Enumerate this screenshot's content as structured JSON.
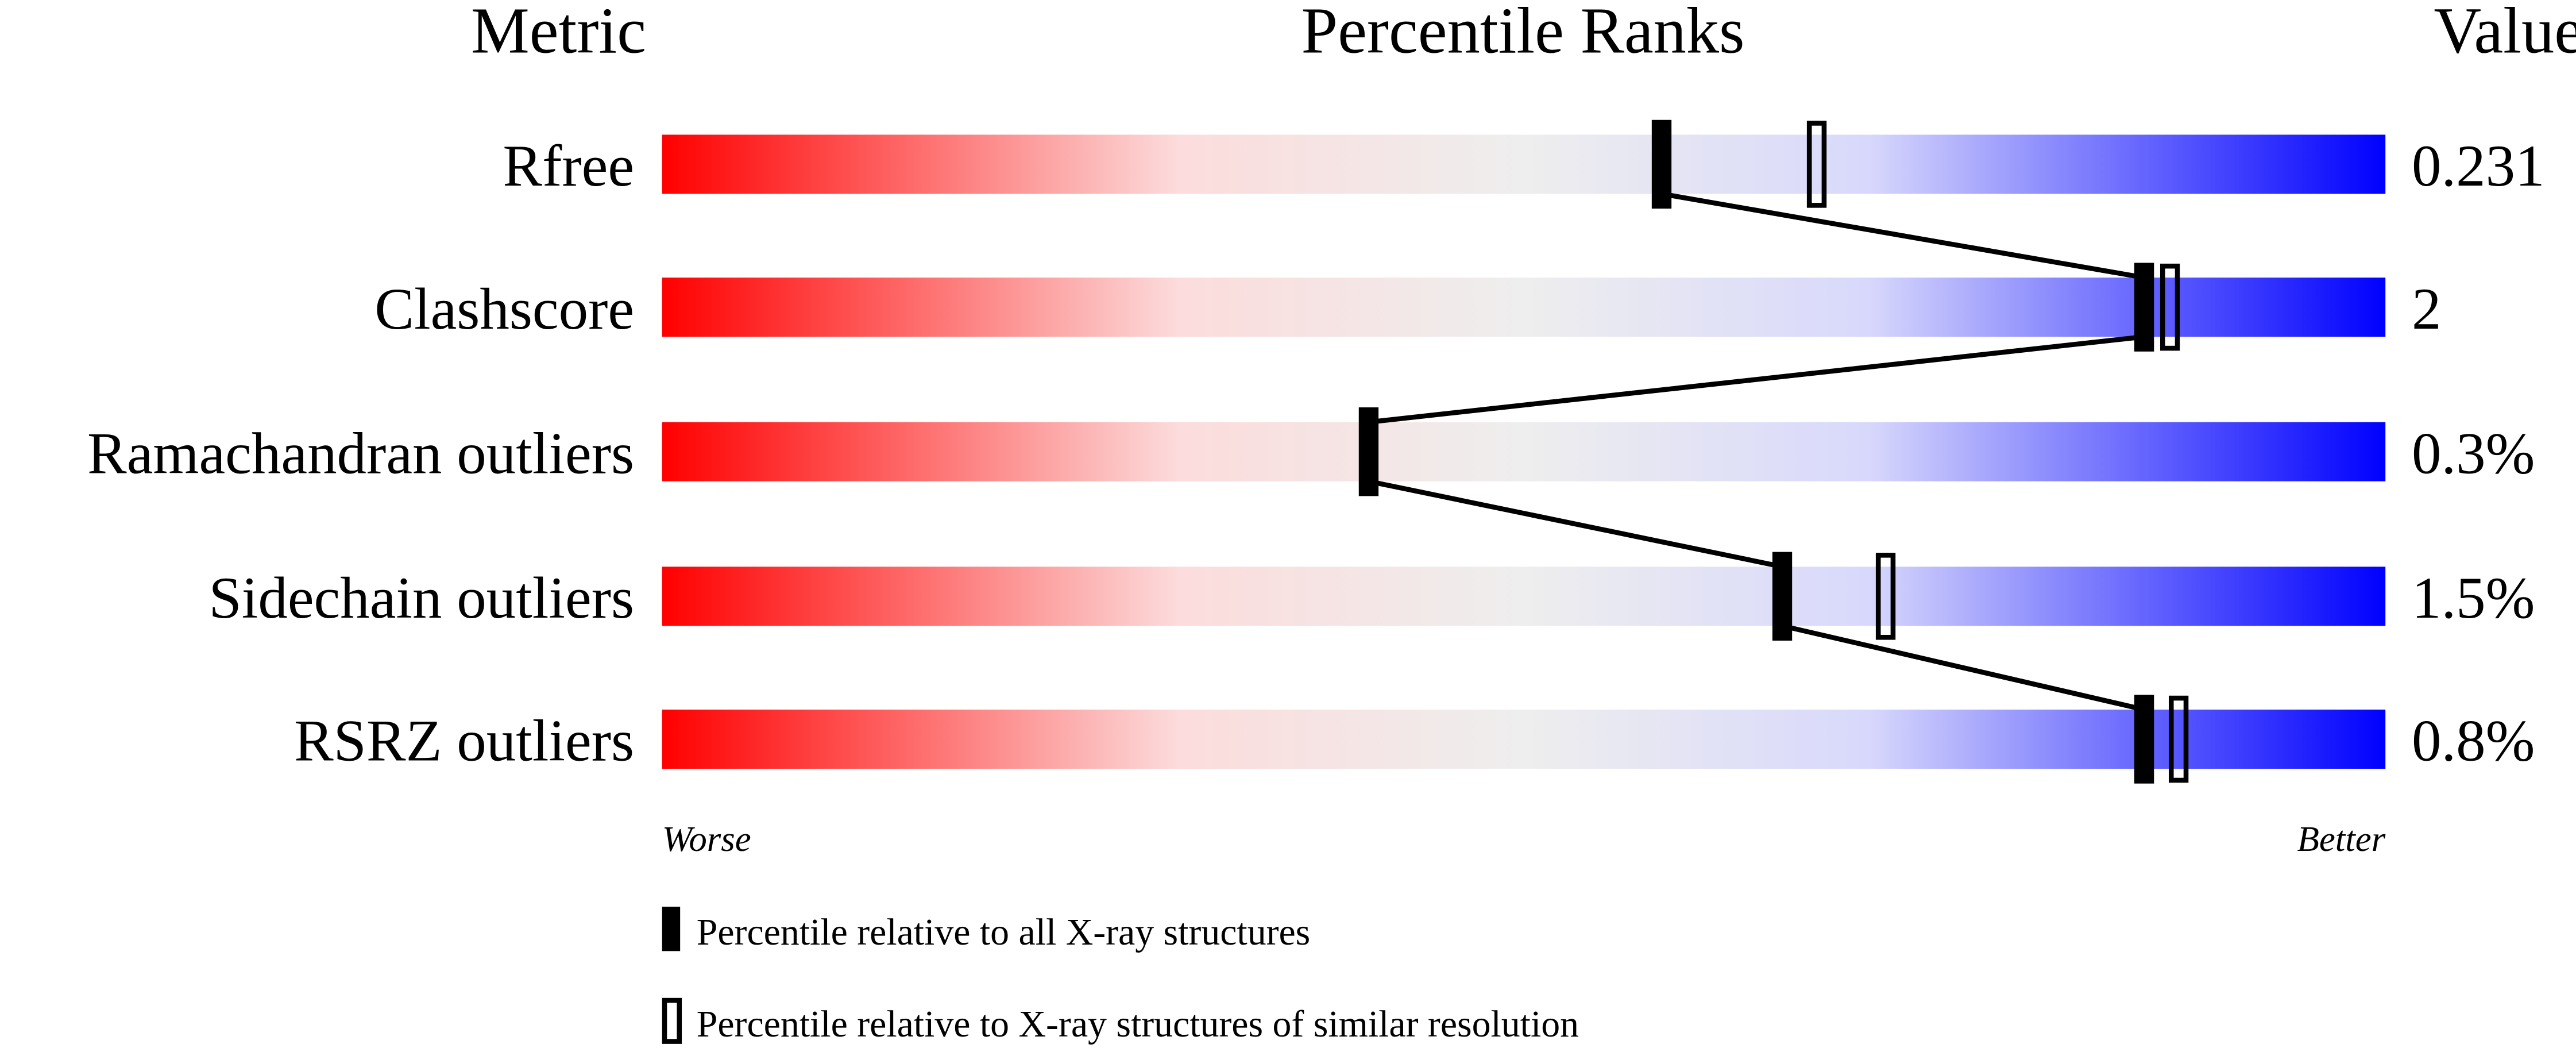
{
  "chart_data": {
    "type": "bar",
    "headers": {
      "metric": "Metric",
      "ranks": "Percentile Ranks",
      "value": "Value"
    },
    "xlim": [
      0,
      100
    ],
    "axis_labels": {
      "left": "Worse",
      "right": "Better"
    },
    "gradient_colors": [
      "#ff0000",
      "#fcdcdc",
      "#eeeeee",
      "#d8d8fc",
      "#0000ff"
    ],
    "rows": [
      {
        "metric": "Rfree",
        "value": "0.231",
        "percentile_all": 58,
        "percentile_similar": 67
      },
      {
        "metric": "Clashscore",
        "value": "2",
        "percentile_all": 86,
        "percentile_similar": 87.5
      },
      {
        "metric": "Ramachandran outliers",
        "value": "0.3%",
        "percentile_all": 41,
        "percentile_similar": null
      },
      {
        "metric": "Sidechain outliers",
        "value": "1.5%",
        "percentile_all": 65,
        "percentile_similar": 71
      },
      {
        "metric": "RSRZ outliers",
        "value": "0.8%",
        "percentile_all": 86,
        "percentile_similar": 88
      }
    ],
    "legend": [
      {
        "marker": "filled",
        "label": "Percentile relative to all X-ray structures"
      },
      {
        "marker": "hollow",
        "label": "Percentile relative to X-ray structures of similar resolution"
      }
    ]
  }
}
